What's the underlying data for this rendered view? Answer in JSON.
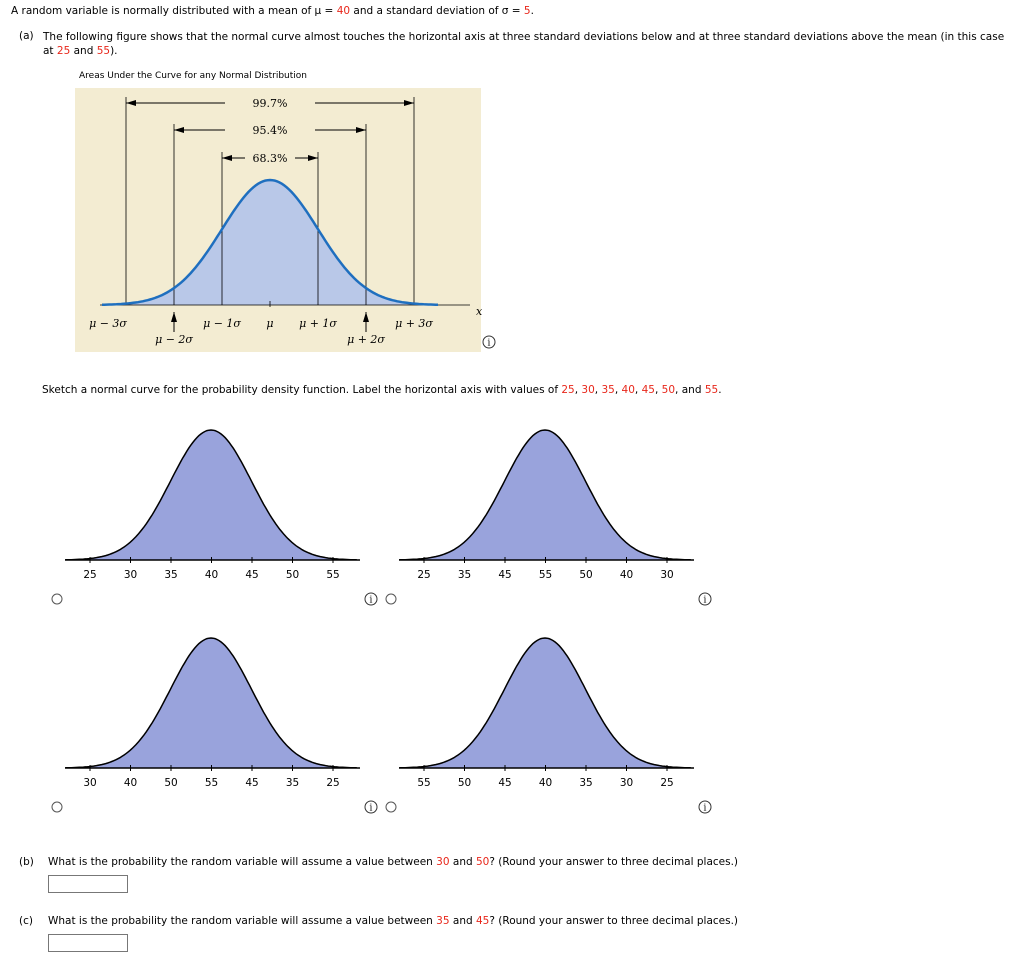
{
  "intro": {
    "before": "A random variable is normally distributed with a mean of μ = ",
    "mean": "40",
    "middle": " and a standard deviation of σ = ",
    "sd": "5",
    "after": "."
  },
  "part_a": {
    "label": "(a)",
    "before": "The following figure shows that the normal curve almost touches the horizontal axis at three standard deviations below and at three standard deviations above the mean (in this case at ",
    "low": "25",
    "middle": " and ",
    "high": "55",
    "after": ")."
  },
  "figure": {
    "title": "Areas Under the Curve for any Normal Distribution",
    "spans": [
      "99.7%",
      "95.4%",
      "68.3%"
    ],
    "axis_labels": [
      "μ − 3σ",
      "μ − 2σ",
      "μ − 1σ",
      "μ",
      "μ + 1σ",
      "μ + 2σ",
      "μ + 3σ"
    ],
    "axis_name": "x"
  },
  "sketch": {
    "before": "Sketch a normal curve for the probability density function. Label the horizontal axis with values of ",
    "values": [
      "25",
      "30",
      "35",
      "40",
      "45",
      "50",
      "55"
    ],
    "separator": ", ",
    "last_separator": "and ",
    "after": "."
  },
  "options": [
    {
      "labels": [
        25,
        30,
        35,
        40,
        45,
        50,
        55
      ]
    },
    {
      "labels": [
        25,
        35,
        45,
        55,
        50,
        40,
        30
      ]
    },
    {
      "labels": [
        30,
        40,
        50,
        55,
        45,
        35,
        25
      ]
    },
    {
      "labels": [
        55,
        50,
        45,
        40,
        35,
        30,
        25
      ]
    }
  ],
  "part_b": {
    "label": "(b)",
    "before": "What is the probability the random variable will assume a value between ",
    "low": "30",
    "middle": " and ",
    "high": "50",
    "after": "? (Round your answer to three decimal places.)"
  },
  "part_c": {
    "label": "(c)",
    "before": "What is the probability the random variable will assume a value between ",
    "low": "35",
    "middle": " and ",
    "high": "45",
    "after": "? (Round your answer to three decimal places.)"
  }
}
